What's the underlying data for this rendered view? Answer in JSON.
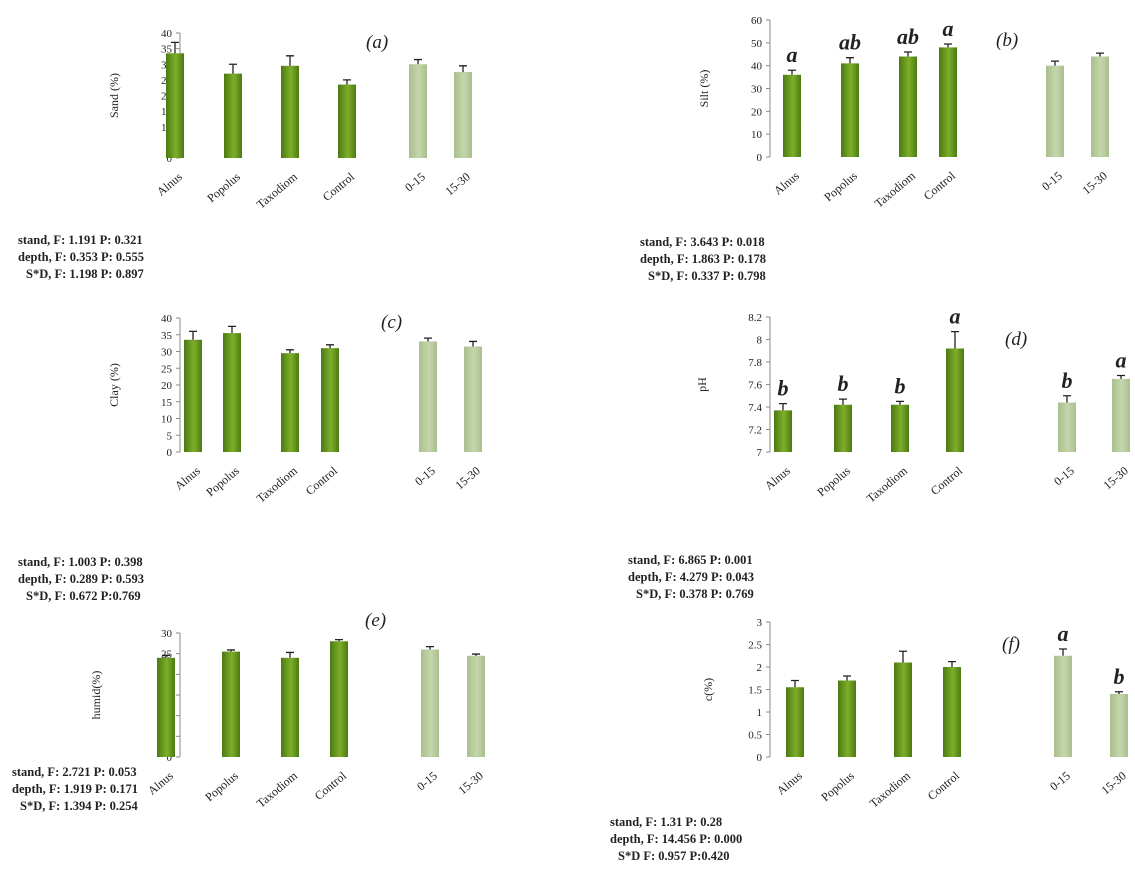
{
  "chart_data": [
    {
      "type": "bar",
      "panel_label": "(a)",
      "ylabel": "Sand (%)",
      "ylim": [
        0,
        40
      ],
      "yticks": [
        0,
        5,
        10,
        15,
        20,
        25,
        30,
        35,
        40
      ],
      "categories": [
        "Alnus",
        "Popolus",
        "Taxodiom",
        "Control",
        "0-15",
        "15-30"
      ],
      "values": [
        33.5,
        27,
        29.5,
        23.5,
        30,
        27.5
      ],
      "errors": [
        3.5,
        3,
        3.2,
        1.5,
        1.5,
        2
      ],
      "sig_letters": [
        "",
        "",
        "",
        "",
        "",
        ""
      ],
      "stats": [
        "stand, F: 1.191 P: 0.321",
        "depth, F: 0.353 P: 0.555",
        "S*D, F: 1.198 P: 0.897"
      ]
    },
    {
      "type": "bar",
      "panel_label": "(b)",
      "ylabel": "Silt (%)",
      "ylim": [
        0,
        60
      ],
      "yticks": [
        0,
        10,
        20,
        30,
        40,
        50,
        60
      ],
      "categories": [
        "Alnus",
        "Popolus",
        "Taxodiom",
        "Control",
        "0-15",
        "15-30"
      ],
      "values": [
        36,
        41,
        44,
        48,
        40,
        44
      ],
      "errors": [
        2,
        2.5,
        2,
        1.5,
        2,
        1.5
      ],
      "sig_letters": [
        "a",
        "ab",
        "ab",
        "a",
        "",
        ""
      ],
      "stats": [
        "stand, F: 3.643 P: 0.018",
        "depth, F: 1.863 P: 0.178",
        "S*D, F: 0.337 P: 0.798"
      ]
    },
    {
      "type": "bar",
      "panel_label": "(c)",
      "ylabel": "Clay (%)",
      "ylim": [
        0,
        40
      ],
      "yticks": [
        0,
        5,
        10,
        15,
        20,
        25,
        30,
        35,
        40
      ],
      "categories": [
        "Alnus",
        "Popolus",
        "Taxodiom",
        "Control",
        "0-15",
        "15-30"
      ],
      "values": [
        33.5,
        35.5,
        29.5,
        31,
        33,
        31.5
      ],
      "errors": [
        2.5,
        2,
        1,
        1,
        1,
        1.5
      ],
      "sig_letters": [
        "",
        "",
        "",
        "",
        "",
        ""
      ],
      "stats": [
        "stand, F: 1.003 P: 0.398",
        "depth, F: 0.289 P: 0.593",
        "S*D, F: 0.672 P:0.769"
      ]
    },
    {
      "type": "bar",
      "panel_label": "(d)",
      "ylabel": "pH",
      "ylim": [
        7,
        8.2
      ],
      "yticks": [
        7,
        7.2,
        7.4,
        7.6,
        7.8,
        8,
        8.2
      ],
      "tick_labels": [
        "7",
        "7.2",
        "7.4",
        "7.6",
        "7.8",
        "8",
        "8.2"
      ],
      "categories": [
        "Alnus",
        "Popolus",
        "Taxodiom",
        "Control",
        "0-15",
        "15-30"
      ],
      "values": [
        7.37,
        7.42,
        7.42,
        7.92,
        7.44,
        7.65
      ],
      "errors": [
        0.06,
        0.05,
        0.03,
        0.15,
        0.06,
        0.03
      ],
      "sig_letters": [
        "b",
        "b",
        "b",
        "a",
        "b",
        "a"
      ],
      "stats": [
        "stand, F: 6.865 P: 0.001",
        "depth, F: 4.279 P: 0.043",
        "S*D, F: 0.378 P: 0.769"
      ]
    },
    {
      "type": "bar",
      "panel_label": "(e)",
      "ylabel": "humid(%)",
      "ylim": [
        0,
        30
      ],
      "yticks": [
        0,
        5,
        10,
        15,
        20,
        25,
        30
      ],
      "categories": [
        "Alnus",
        "Popolus",
        "Taxodiom",
        "Control",
        "0-15",
        "15-30"
      ],
      "values": [
        24,
        25.5,
        24,
        28,
        26,
        24.5
      ],
      "errors": [
        0.6,
        0.4,
        1.3,
        0.4,
        0.7,
        0.4
      ],
      "sig_letters": [
        "",
        "",
        "",
        "",
        "",
        ""
      ],
      "stats": [
        "stand, F: 2.721 P: 0.053",
        "depth, F: 1.919 P: 0.171",
        "S*D, F: 1.394 P: 0.254"
      ]
    },
    {
      "type": "bar",
      "panel_label": "(f)",
      "ylabel": "c(%)",
      "ylim": [
        0,
        3
      ],
      "yticks": [
        0,
        0.5,
        1,
        1.5,
        2,
        2.5,
        3
      ],
      "tick_labels": [
        "0",
        "0.5",
        "1",
        "1.5",
        "2",
        "2.5",
        "3"
      ],
      "categories": [
        "Alnus",
        "Popolus",
        "Taxodiom",
        "Control",
        "0-15",
        "15-30"
      ],
      "values": [
        1.55,
        1.7,
        2.1,
        2.0,
        2.25,
        1.4
      ],
      "errors": [
        0.15,
        0.1,
        0.25,
        0.12,
        0.15,
        0.05
      ],
      "sig_letters": [
        "",
        "",
        "",
        "",
        "a",
        "b"
      ],
      "stats": [
        "stand, F: 1.31 P: 0.28",
        "depth, F: 14.456 P: 0.000",
        "S*D F: 0.957 P:0.420"
      ]
    }
  ],
  "colors": {
    "stand_bar": "#7fae2a",
    "stand_bar_dark": "#4a7a12",
    "depth_bar": "#c4d6ac",
    "depth_bar_dark": "#a9bf8c",
    "axis": "#8a8a8a",
    "text": "#222222"
  }
}
